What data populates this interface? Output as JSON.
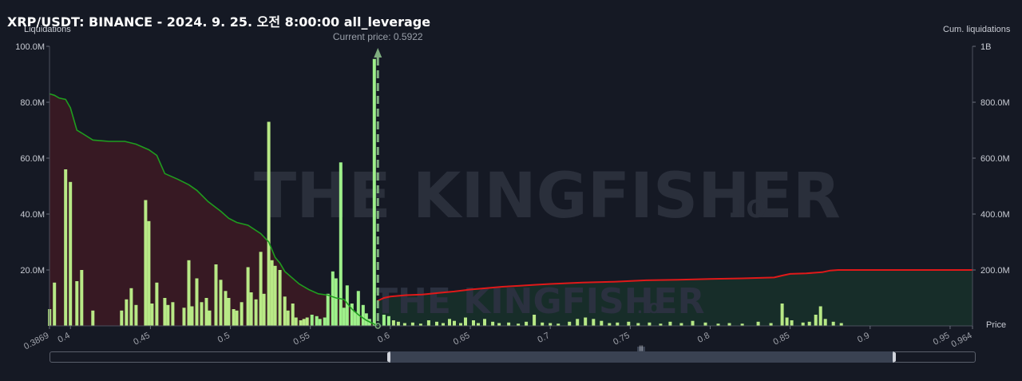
{
  "title": "XRP/USDT: BINANCE - 2024. 9. 25. 오전 8:00:00 all_leverage",
  "left_axis_title": "Liquidations",
  "right_axis_title": "Cum. liquidations",
  "x_axis_title": "Price",
  "current_price_label": "Current price: 0.5922",
  "watermark": {
    "brand": "THE KINGFISHER",
    "suffix": ".IO"
  },
  "colors": {
    "background": "#151924",
    "bar": "#b8e986",
    "bar_bright": "#9ef08a",
    "cum_short": "#1f9d1f",
    "cum_long": "#e01919",
    "area_left": "#3b1a24",
    "area_right": "#17302a",
    "current_price_line": "#7fae7f"
  },
  "chart_data": {
    "type": "bar",
    "xlim": [
      0.3869,
      0.964
    ],
    "left_ylim": [
      0,
      100000000
    ],
    "right_ylim": [
      0,
      1000000000
    ],
    "left_ticks": [
      "100.0M",
      "80.0M",
      "60.0M",
      "40.0M",
      "20.0M"
    ],
    "left_tick_values": [
      100000000,
      80000000,
      60000000,
      40000000,
      20000000
    ],
    "right_ticks": [
      "1B",
      "800.0M",
      "600.0M",
      "400.0M",
      "200.0M"
    ],
    "right_tick_values": [
      1000000000,
      800000000,
      600000000,
      400000000,
      200000000
    ],
    "x_ticks": [
      "0.3869",
      "0.4",
      "0.45",
      "0.5",
      "0.55",
      "0.6",
      "0.65",
      "0.7",
      "0.75",
      "0.8",
      "0.85",
      "0.9",
      "0.95",
      "0.964"
    ],
    "x_tick_values": [
      0.3869,
      0.4,
      0.45,
      0.5,
      0.55,
      0.6,
      0.65,
      0.7,
      0.75,
      0.8,
      0.85,
      0.9,
      0.95,
      0.964
    ],
    "current_price": 0.5922,
    "bars": {
      "x": [
        0.387,
        0.39,
        0.397,
        0.4,
        0.404,
        0.407,
        0.414,
        0.432,
        0.435,
        0.438,
        0.441,
        0.447,
        0.449,
        0.451,
        0.454,
        0.459,
        0.461,
        0.464,
        0.471,
        0.474,
        0.476,
        0.479,
        0.482,
        0.485,
        0.487,
        0.491,
        0.494,
        0.497,
        0.499,
        0.502,
        0.504,
        0.507,
        0.511,
        0.513,
        0.516,
        0.519,
        0.521,
        0.524,
        0.526,
        0.528,
        0.531,
        0.534,
        0.536,
        0.539,
        0.541,
        0.544,
        0.546,
        0.548,
        0.551,
        0.554,
        0.556,
        0.559,
        0.561,
        0.564,
        0.566,
        0.569,
        0.571,
        0.573,
        0.576,
        0.578,
        0.58,
        0.583,
        0.585,
        0.587,
        0.59,
        0.596,
        0.599,
        0.602,
        0.605,
        0.609,
        0.614,
        0.619,
        0.624,
        0.629,
        0.633,
        0.637,
        0.64,
        0.644,
        0.647,
        0.652,
        0.655,
        0.659,
        0.664,
        0.668,
        0.674,
        0.68,
        0.685,
        0.69,
        0.695,
        0.7,
        0.705,
        0.712,
        0.717,
        0.722,
        0.727,
        0.732,
        0.737,
        0.742,
        0.749,
        0.755,
        0.762,
        0.769,
        0.775,
        0.782,
        0.789,
        0.797,
        0.805,
        0.812,
        0.82,
        0.83,
        0.838,
        0.845,
        0.848,
        0.851,
        0.858,
        0.862,
        0.866,
        0.869,
        0.872,
        0.877,
        0.882
      ],
      "values": [
        6000000,
        15500000,
        56000000,
        51500000,
        16000000,
        20000000,
        5500000,
        5500000,
        9500000,
        13500000,
        7500000,
        45000000,
        37500000,
        8000000,
        15500000,
        10000000,
        7500000,
        8500000,
        6500000,
        23500000,
        7000000,
        17000000,
        8500000,
        10000000,
        5500000,
        22000000,
        16500000,
        12500000,
        10000000,
        6000000,
        5500000,
        8500000,
        21000000,
        12000000,
        9500000,
        26500000,
        11500000,
        73000000,
        23500000,
        21500000,
        20000000,
        10500000,
        5500000,
        8000000,
        3000000,
        2000000,
        2500000,
        3000000,
        4000000,
        3500000,
        2500000,
        3000000,
        11500000,
        19500000,
        17000000,
        58500000,
        6500000,
        14500000,
        8000000,
        5000000,
        12500000,
        7500000,
        4500000,
        2500000,
        95500000,
        4000000,
        3500000,
        2000000,
        1500000,
        1000000,
        1200000,
        800000,
        2000000,
        1500000,
        1000000,
        2500000,
        1800000,
        1000000,
        3000000,
        2000000,
        1000000,
        2500000,
        1500000,
        1000000,
        1200000,
        800000,
        1500000,
        4000000,
        1200000,
        1000000,
        800000,
        1500000,
        2500000,
        3000000,
        2500000,
        1800000,
        1000000,
        1200000,
        1500000,
        1000000,
        1200000,
        800000,
        1500000,
        1000000,
        1800000,
        1200000,
        800000,
        1000000,
        800000,
        1500000,
        1000000,
        8000000,
        3000000,
        2000000,
        1200000,
        1500000,
        4000000,
        7000000,
        2500000,
        1500000,
        1000000
      ]
    },
    "cum_short_line": {
      "x": [
        0.387,
        0.39,
        0.393,
        0.397,
        0.4,
        0.404,
        0.407,
        0.414,
        0.424,
        0.434,
        0.441,
        0.449,
        0.454,
        0.459,
        0.467,
        0.474,
        0.479,
        0.486,
        0.494,
        0.499,
        0.504,
        0.511,
        0.519,
        0.524,
        0.528,
        0.531,
        0.534,
        0.538,
        0.543,
        0.549,
        0.555,
        0.561,
        0.566,
        0.571,
        0.576,
        0.58,
        0.585,
        0.5922
      ],
      "values": [
        830000000,
        825000000,
        815000000,
        810000000,
        780000000,
        700000000,
        690000000,
        665000000,
        660000000,
        660000000,
        650000000,
        630000000,
        610000000,
        545000000,
        525000000,
        505000000,
        485000000,
        445000000,
        410000000,
        385000000,
        370000000,
        360000000,
        330000000,
        300000000,
        245000000,
        225000000,
        195000000,
        175000000,
        150000000,
        130000000,
        115000000,
        110000000,
        100000000,
        95000000,
        60000000,
        40000000,
        20000000,
        0
      ]
    },
    "cum_long_line": {
      "x": [
        0.5922,
        0.596,
        0.6,
        0.61,
        0.62,
        0.63,
        0.64,
        0.65,
        0.66,
        0.67,
        0.68,
        0.69,
        0.7,
        0.72,
        0.74,
        0.76,
        0.78,
        0.8,
        0.82,
        0.84,
        0.845,
        0.85,
        0.86,
        0.87,
        0.875,
        0.88,
        0.9,
        0.93,
        0.964
      ],
      "values": [
        90000000,
        100000000,
        105000000,
        110000000,
        112000000,
        118000000,
        123000000,
        130000000,
        135000000,
        140000000,
        143000000,
        147000000,
        150000000,
        155000000,
        158000000,
        163000000,
        165000000,
        168000000,
        170000000,
        173000000,
        180000000,
        186000000,
        188000000,
        192000000,
        198000000,
        200000000,
        200000000,
        200000000,
        200000000
      ]
    }
  }
}
